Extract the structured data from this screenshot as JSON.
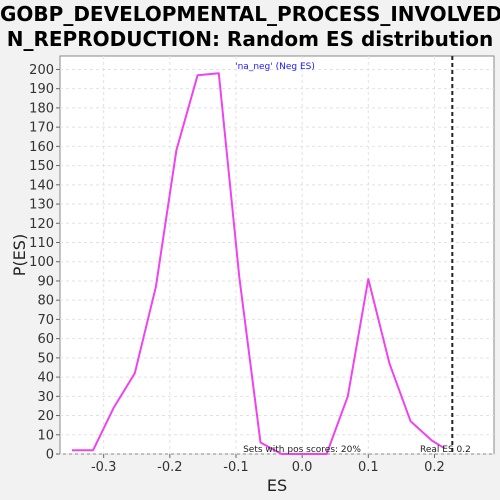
{
  "chart_data": {
    "type": "line",
    "title_line1": "GOBP_DEVELOPMENTAL_PROCESS_INVOLVED_I",
    "title_line2": "N_REPRODUCTION: Random ES distribution",
    "xlabel": "ES",
    "ylabel": "P(ES)",
    "xlim": [
      -0.366,
      0.29
    ],
    "ylim": [
      0,
      207
    ],
    "x_ticks": [
      -0.3,
      -0.2,
      -0.1,
      0.0,
      0.1,
      0.2
    ],
    "x_tick_labels": [
      "-0.3",
      "-0.2",
      "-0.1",
      "0.0",
      "0.1",
      "0.2"
    ],
    "y_ticks": [
      0,
      10,
      20,
      30,
      40,
      50,
      60,
      70,
      80,
      90,
      100,
      110,
      120,
      130,
      140,
      150,
      160,
      170,
      180,
      190,
      200
    ],
    "grid": true,
    "series": [
      {
        "name": "'na_neg' (Neg ES)",
        "color": "#ee44ee",
        "x": [
          -0.348,
          -0.316,
          -0.285,
          -0.253,
          -0.221,
          -0.19,
          -0.158,
          -0.126,
          -0.095,
          -0.063,
          -0.031,
          0.0,
          0.037,
          0.069,
          0.1,
          0.132,
          0.164,
          0.196,
          0.215
        ],
        "y": [
          2,
          2,
          24,
          42,
          87,
          158,
          197,
          198,
          92,
          6,
          0,
          0,
          0,
          30,
          91,
          47,
          17,
          7,
          3
        ]
      }
    ],
    "real_es": 0.227,
    "real_es_color": "#222222",
    "annotation_pos_scores": "Sets with pos scores: 20%",
    "annotation_real_es": "Real ES 0.2",
    "legend_position": "top-center"
  }
}
